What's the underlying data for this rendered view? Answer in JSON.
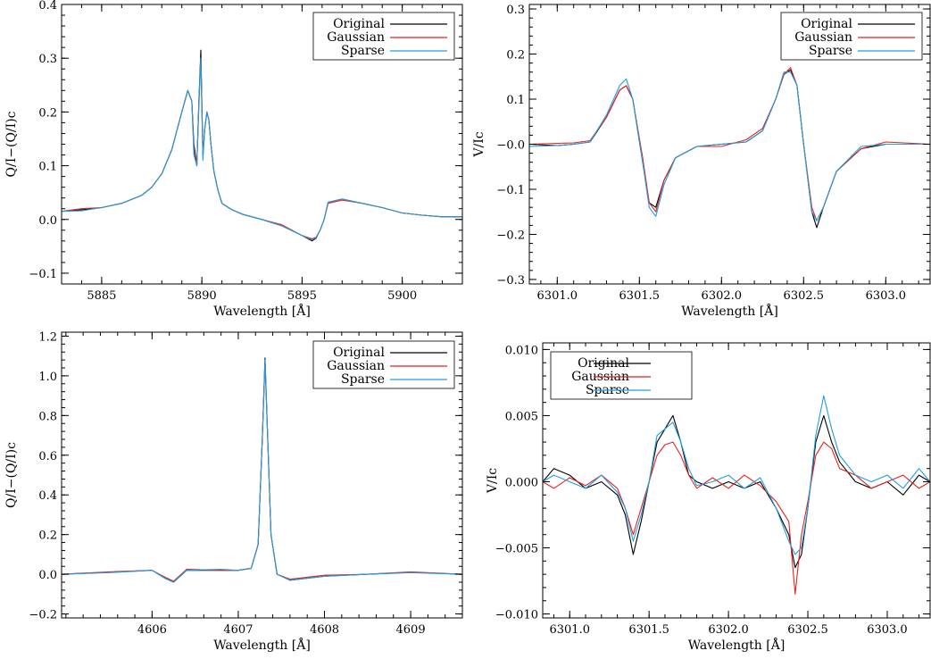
{
  "series_styles": {
    "Original": "#000000",
    "Gaussian": "#e8201c",
    "Sparse": "#1f9ee0"
  },
  "chart_data": [
    {
      "type": "line",
      "xlabel": "Wavelength [Å]",
      "ylabel": "Q/I−(Q/I)c",
      "xlim": [
        5883,
        5903
      ],
      "ylim": [
        -0.12,
        0.4
      ],
      "xticks": [
        5885,
        5890,
        5895,
        5900
      ],
      "yticks": [
        -0.1,
        0.0,
        0.1,
        0.2,
        0.3,
        0.4
      ],
      "xtick_labels": [
        "5885",
        "5890",
        "5895",
        "5900"
      ],
      "ytick_labels": [
        "−0.1",
        "0.0",
        "0.1",
        "0.2",
        "0.3",
        "0.4"
      ],
      "legend": "top-right",
      "grid": false,
      "x": [
        5883,
        5884,
        5885,
        5886,
        5887,
        5887.5,
        5888,
        5888.5,
        5889,
        5889.3,
        5889.5,
        5889.6,
        5889.75,
        5889.85,
        5889.95,
        5890.05,
        5890.15,
        5890.25,
        5890.35,
        5890.45,
        5890.6,
        5890.8,
        5891,
        5891.5,
        5892,
        5893,
        5894,
        5895,
        5895.5,
        5895.7,
        5895.9,
        5896.1,
        5896.3,
        5897,
        5898,
        5899,
        5900,
        5901,
        5902,
        5903
      ],
      "series": [
        {
          "name": "Original",
          "values": [
            0.015,
            0.018,
            0.022,
            0.03,
            0.045,
            0.06,
            0.085,
            0.13,
            0.2,
            0.24,
            0.22,
            0.14,
            0.1,
            0.22,
            0.315,
            0.12,
            0.17,
            0.2,
            0.185,
            0.14,
            0.09,
            0.055,
            0.03,
            0.018,
            0.01,
            0.0,
            -0.012,
            -0.03,
            -0.04,
            -0.035,
            -0.02,
            0.0,
            0.032,
            0.038,
            0.03,
            0.022,
            0.012,
            0.008,
            0.005,
            0.005
          ]
        },
        {
          "name": "Gaussian",
          "values": [
            0.015,
            0.02,
            0.022,
            0.03,
            0.045,
            0.06,
            0.085,
            0.13,
            0.2,
            0.24,
            0.22,
            0.13,
            0.1,
            0.21,
            0.3,
            0.12,
            0.17,
            0.2,
            0.185,
            0.14,
            0.09,
            0.055,
            0.03,
            0.018,
            0.01,
            0.0,
            -0.01,
            -0.03,
            -0.036,
            -0.033,
            -0.02,
            0.0,
            0.03,
            0.036,
            0.03,
            0.022,
            0.012,
            0.008,
            0.005,
            0.005
          ]
        },
        {
          "name": "Sparse",
          "values": [
            0.015,
            0.016,
            0.022,
            0.03,
            0.045,
            0.06,
            0.085,
            0.13,
            0.2,
            0.24,
            0.22,
            0.12,
            0.1,
            0.22,
            0.3,
            0.11,
            0.17,
            0.2,
            0.185,
            0.14,
            0.09,
            0.055,
            0.03,
            0.018,
            0.01,
            0.0,
            -0.012,
            -0.03,
            -0.038,
            -0.034,
            -0.02,
            0.0,
            0.032,
            0.038,
            0.03,
            0.022,
            0.012,
            0.008,
            0.005,
            0.005
          ]
        }
      ]
    },
    {
      "type": "line",
      "xlabel": "Wavelength [Å]",
      "ylabel": "V/Ic",
      "xlim": [
        6300.83,
        6303.27
      ],
      "ylim": [
        -0.31,
        0.31
      ],
      "xticks": [
        6301.0,
        6301.5,
        6302.0,
        6302.5,
        6303.0
      ],
      "yticks": [
        -0.3,
        -0.2,
        -0.1,
        0.0,
        0.1,
        0.2,
        0.3
      ],
      "xtick_labels": [
        "6301.0",
        "6301.5",
        "6302.0",
        "6302.5",
        "6303.0"
      ],
      "ytick_labels": [
        "−0.3",
        "−0.2",
        "−0.1",
        "−0.0",
        "0.1",
        "0.2",
        "0.3"
      ],
      "legend": "top-right",
      "grid": false,
      "x": [
        6300.83,
        6301.0,
        6301.1,
        6301.2,
        6301.3,
        6301.38,
        6301.42,
        6301.46,
        6301.52,
        6301.56,
        6301.6,
        6301.65,
        6301.72,
        6301.85,
        6302.0,
        6302.15,
        6302.25,
        6302.33,
        6302.38,
        6302.42,
        6302.46,
        6302.5,
        6302.55,
        6302.58,
        6302.62,
        6302.7,
        6302.85,
        6303.0,
        6303.27
      ],
      "series": [
        {
          "name": "Original",
          "values": [
            0.0,
            -0.003,
            0.0,
            0.005,
            0.06,
            0.12,
            0.13,
            0.1,
            -0.04,
            -0.13,
            -0.14,
            -0.08,
            -0.03,
            -0.005,
            0.0,
            0.005,
            0.03,
            0.1,
            0.155,
            0.165,
            0.13,
            0.0,
            -0.15,
            -0.185,
            -0.14,
            -0.06,
            -0.01,
            0.0,
            0.0
          ]
        },
        {
          "name": "Gaussian",
          "values": [
            0.0,
            0.002,
            0.003,
            0.008,
            0.06,
            0.12,
            0.13,
            0.1,
            -0.03,
            -0.13,
            -0.15,
            -0.08,
            -0.03,
            -0.005,
            -0.005,
            0.01,
            0.035,
            0.1,
            0.155,
            0.17,
            0.13,
            0.0,
            -0.14,
            -0.17,
            -0.14,
            -0.06,
            -0.01,
            0.005,
            0.0
          ]
        },
        {
          "name": "Sparse",
          "values": [
            -0.005,
            -0.003,
            0.0,
            0.005,
            0.065,
            0.13,
            0.145,
            0.1,
            -0.04,
            -0.14,
            -0.16,
            -0.09,
            -0.03,
            -0.005,
            0.0,
            0.005,
            0.03,
            0.1,
            0.16,
            0.16,
            0.13,
            0.0,
            -0.15,
            -0.17,
            -0.14,
            -0.06,
            -0.005,
            0.0,
            0.0
          ]
        }
      ]
    },
    {
      "type": "line",
      "xlabel": "Wavelength [Å]",
      "ylabel": "Q/I−(Q/I)c",
      "xlim": [
        4604.95,
        4609.6
      ],
      "ylim": [
        -0.22,
        1.22
      ],
      "xticks": [
        4606,
        4607,
        4608,
        4609
      ],
      "yticks": [
        -0.2,
        0.0,
        0.2,
        0.4,
        0.6,
        0.8,
        1.0,
        1.2
      ],
      "xtick_labels": [
        "4606",
        "4607",
        "4608",
        "4609"
      ],
      "ytick_labels": [
        "−0.2",
        "0.0",
        "0.2",
        "0.4",
        "0.6",
        "0.8",
        "1.0",
        "1.2"
      ],
      "legend": "top-right",
      "grid": false,
      "x": [
        4604.95,
        4605.5,
        4606.0,
        4606.15,
        4606.25,
        4606.4,
        4606.8,
        4607.0,
        4607.15,
        4607.23,
        4607.28,
        4607.31,
        4607.34,
        4607.38,
        4607.45,
        4607.6,
        4607.8,
        4608.0,
        4608.5,
        4609.0,
        4609.6
      ],
      "series": [
        {
          "name": "Original",
          "values": [
            0.0,
            0.01,
            0.02,
            -0.02,
            -0.04,
            0.02,
            0.02,
            0.02,
            0.03,
            0.15,
            0.7,
            1.09,
            0.7,
            0.2,
            0.0,
            -0.03,
            -0.02,
            -0.01,
            0.0,
            0.01,
            0.0
          ]
        },
        {
          "name": "Gaussian",
          "values": [
            0.0,
            0.012,
            0.02,
            -0.015,
            -0.035,
            0.025,
            0.02,
            0.02,
            0.03,
            0.15,
            0.7,
            1.07,
            0.7,
            0.2,
            0.0,
            -0.025,
            -0.015,
            -0.005,
            0.0,
            0.012,
            0.0
          ]
        },
        {
          "name": "Sparse",
          "values": [
            0.0,
            0.008,
            0.02,
            -0.02,
            -0.04,
            0.02,
            0.025,
            0.02,
            0.03,
            0.15,
            0.7,
            1.08,
            0.7,
            0.2,
            0.0,
            -0.03,
            -0.02,
            -0.01,
            0.0,
            0.008,
            0.0
          ]
        }
      ]
    },
    {
      "type": "line",
      "xlabel": "Wavelength [Å]",
      "ylabel": "V/Ic",
      "xlim": [
        6300.83,
        6303.27
      ],
      "ylim": [
        -0.0103,
        0.0105
      ],
      "xticks": [
        6301.0,
        6301.5,
        6302.0,
        6302.5,
        6303.0
      ],
      "yticks": [
        -0.01,
        -0.005,
        0.0,
        0.005,
        0.01
      ],
      "xtick_labels": [
        "6301.0",
        "6301.5",
        "6302.0",
        "6302.5",
        "6303.0"
      ],
      "ytick_labels": [
        "−0.010",
        "−0.005",
        "0.000",
        "0.005",
        "0.010"
      ],
      "legend": "top-left",
      "grid": false,
      "x": [
        6300.83,
        6300.9,
        6301.0,
        6301.1,
        6301.2,
        6301.3,
        6301.35,
        6301.4,
        6301.45,
        6301.5,
        6301.55,
        6301.6,
        6301.65,
        6301.7,
        6301.75,
        6301.8,
        6301.9,
        6302.0,
        6302.1,
        6302.2,
        6302.3,
        6302.38,
        6302.42,
        6302.46,
        6302.5,
        6302.55,
        6302.6,
        6302.65,
        6302.7,
        6302.8,
        6302.9,
        6303.0,
        6303.1,
        6303.2,
        6303.27
      ],
      "series": [
        {
          "name": "Original",
          "values": [
            0.0,
            0.001,
            0.0005,
            -0.0005,
            0.0,
            -0.001,
            -0.0025,
            -0.0055,
            -0.003,
            0.0,
            0.003,
            0.004,
            0.005,
            0.003,
            0.0005,
            0.0,
            -0.0005,
            0.0,
            -0.0005,
            0.0,
            -0.002,
            -0.004,
            -0.0065,
            -0.0055,
            -0.002,
            0.003,
            0.005,
            0.003,
            0.0015,
            0.0,
            -0.0005,
            0.0,
            -0.001,
            0.0005,
            0.0
          ]
        },
        {
          "name": "Gaussian",
          "values": [
            0.0,
            -0.0005,
            0.0003,
            -0.0003,
            0.0005,
            -0.0005,
            -0.002,
            -0.004,
            -0.002,
            0.0,
            0.002,
            0.0028,
            0.003,
            0.002,
            0.0005,
            -0.0005,
            0.0003,
            -0.0005,
            0.0005,
            -0.0003,
            -0.0015,
            -0.003,
            -0.0085,
            -0.004,
            -0.0015,
            0.002,
            0.003,
            0.0025,
            0.001,
            0.0005,
            -0.0005,
            0.0,
            0.0005,
            -0.0005,
            0.0
          ]
        },
        {
          "name": "Sparse",
          "values": [
            0.0,
            0.0005,
            0.0,
            -0.0005,
            0.0005,
            -0.0008,
            -0.002,
            -0.0045,
            -0.0025,
            0.0,
            0.0035,
            0.004,
            0.0045,
            0.003,
            0.001,
            -0.0003,
            0.0,
            0.0005,
            -0.0005,
            0.0003,
            -0.002,
            -0.0045,
            -0.0055,
            -0.005,
            -0.002,
            0.0035,
            0.0065,
            0.004,
            0.002,
            0.0005,
            0.0,
            0.0005,
            -0.0005,
            0.001,
            0.0
          ]
        }
      ]
    }
  ]
}
